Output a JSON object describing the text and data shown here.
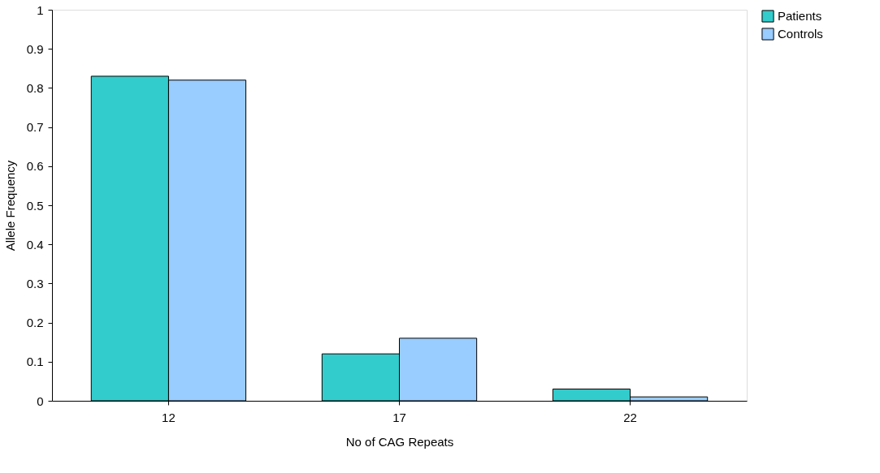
{
  "chart_data": {
    "type": "bar",
    "xlabel": "No of CAG Repeats",
    "ylabel": "Allele Frequency",
    "categories": [
      "12",
      "17",
      "22"
    ],
    "series": [
      {
        "name": "Patients",
        "color": "#33cccc",
        "values": [
          0.83,
          0.12,
          0.03
        ]
      },
      {
        "name": "Controls",
        "color": "#99ccff",
        "values": [
          0.82,
          0.16,
          0.01
        ]
      }
    ],
    "ylim": [
      0,
      1
    ],
    "yticks": [
      0,
      0.1,
      0.2,
      0.3,
      0.4,
      0.5,
      0.6,
      0.7,
      0.8,
      0.9,
      1
    ],
    "grid": false,
    "legend": "right"
  }
}
